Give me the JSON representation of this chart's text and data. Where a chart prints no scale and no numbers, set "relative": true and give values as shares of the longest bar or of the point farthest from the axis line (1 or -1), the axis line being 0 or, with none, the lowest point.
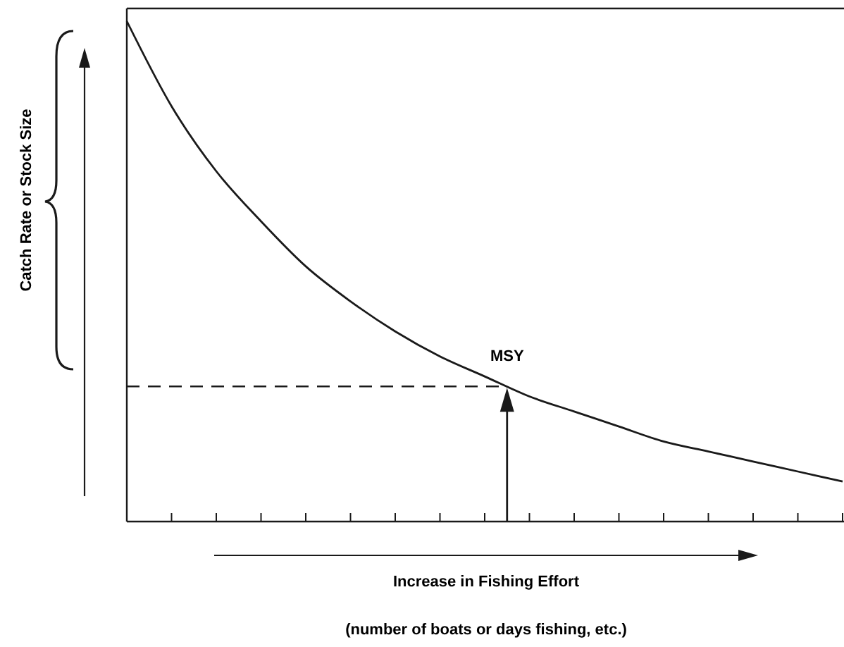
{
  "chart_data": {
    "type": "line",
    "relative": true,
    "xlabel": "Increase in Fishing Effort",
    "categories": [
      null,
      null,
      null,
      null,
      null,
      null,
      null,
      null,
      null,
      null,
      null,
      null,
      null,
      null,
      null,
      null,
      null
    ],
    "series": [
      {
        "color": "#1a1a1a",
        "values": [
          1,
          0.83,
          0.7,
          0.6,
          0.51,
          0.44,
          0.38,
          0.33,
          0.29,
          0.25,
          0.22,
          0.19,
          0.16,
          0.14,
          0.12,
          0.1,
          0.08
        ]
      }
    ],
    "ref_lines": [
      {
        "axis": "y",
        "value": 0.27,
        "label": "MSY",
        "line_style": "dashed",
        "color": "#1a1a1a"
      }
    ],
    "annotations": [
      "Catch Rate or Stock Size",
      "(number of boats or days fishing, etc.)"
    ],
    "line_style": "solid",
    "marker": "none"
  }
}
